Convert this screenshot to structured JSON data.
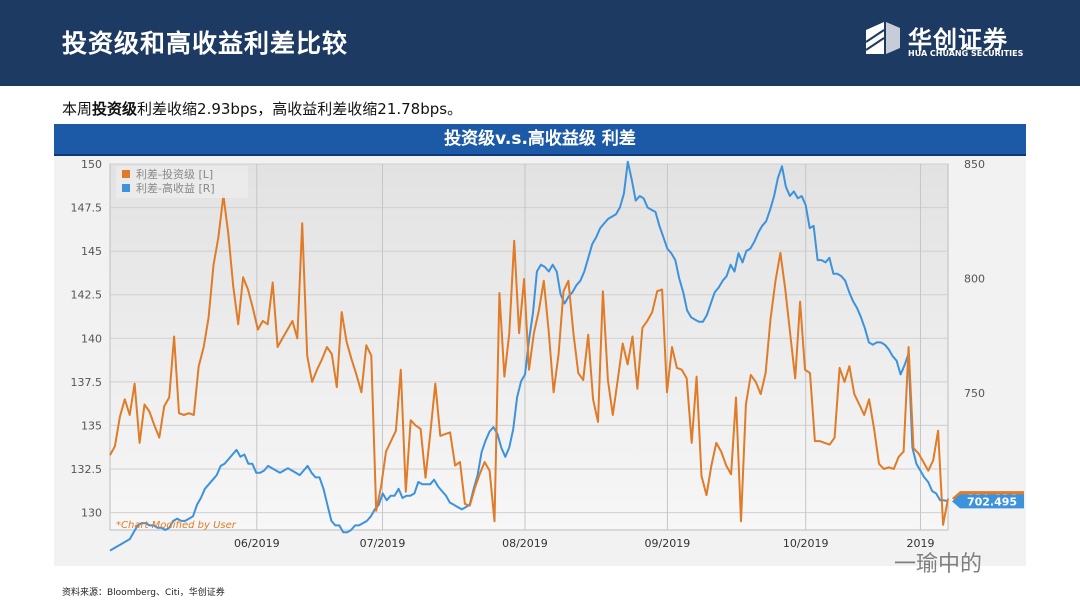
{
  "header": {
    "title": "投资级和高收益利差比较"
  },
  "logo": {
    "cn": "华创证券",
    "en": "HUA CHUANG SECURITIES"
  },
  "summary": {
    "pre": "本周",
    "bold": "投资级",
    "rest": "利差收缩2.93bps，高收益利差收缩21.78bps。"
  },
  "chart_banner": "投资级v.s.高收益级 利差",
  "footer": {
    "source": "资料来源：Bloomberg、Citi，华创证券"
  },
  "watermark": "一瑜中的",
  "colors": {
    "ig": "#e07b28",
    "hy": "#3d92dc",
    "banner": "#1c5aa8",
    "header": "#1d3a63"
  },
  "chart_data": {
    "type": "line",
    "annotation": "*Chart Modified by User",
    "x_labels": [
      "06/2019",
      "07/2019",
      "08/2019",
      "09/2019",
      "10/2019",
      "2019"
    ],
    "left_axis": {
      "ticks": [
        "150",
        "147.5",
        "145",
        "142.5",
        "140",
        "137.5",
        "135",
        "132.5",
        "130"
      ],
      "ylim": [
        129,
        150
      ]
    },
    "right_axis": {
      "ticks": [
        "850",
        "800",
        "750"
      ],
      "ylim": [
        690,
        850
      ]
    },
    "series": [
      {
        "name": "利差-投资级 [L]",
        "axis": "left",
        "color": "#e07b28",
        "last_value": "130.826",
        "values": [
          133.3,
          133.8,
          135.5,
          136.5,
          135.6,
          137.4,
          134,
          136.2,
          135.8,
          135,
          134.3,
          136.1,
          136.6,
          140.1,
          135.7,
          135.6,
          135.7,
          135.6,
          138.4,
          139.5,
          141.2,
          144.2,
          145.8,
          148.2,
          146,
          143,
          140.8,
          143.5,
          142.8,
          141.7,
          140.5,
          141,
          140.8,
          143.2,
          139.5,
          140,
          140.5,
          141,
          140,
          146.6,
          139,
          137.5,
          138.2,
          138.8,
          139.5,
          139.1,
          137.2,
          141.5,
          139.8,
          138.8,
          137.9,
          136.9,
          139.6,
          139,
          130.1,
          131.5,
          133.5,
          134.1,
          134.7,
          138.2,
          131.2,
          135.3,
          135,
          134.8,
          132,
          134.6,
          137.4,
          134.4,
          134.5,
          134.6,
          132.7,
          132.9,
          130.5,
          130.4,
          131.4,
          132.2,
          132.9,
          132.4,
          129.5,
          142.6,
          137.8,
          140.3,
          145.6,
          140.3,
          143.4,
          138.2,
          140.3,
          141.6,
          143.3,
          140.4,
          136.9,
          139.1,
          142.7,
          143.3,
          140.3,
          138,
          137.6,
          140.2,
          136.5,
          135.2,
          142.7,
          137.6,
          135.6,
          137.6,
          139.7,
          138.5,
          140.1,
          137.1,
          140.6,
          141,
          141.5,
          142.7,
          142.8,
          136.9,
          139.5,
          138.3,
          138.2,
          137.7,
          134,
          137.8,
          132.1,
          131,
          132.7,
          134,
          133.5,
          132.7,
          132.2,
          136.6,
          129.5,
          136.2,
          137.9,
          137.5,
          136.8,
          138,
          141.1,
          143.3,
          144.9,
          142.8,
          140.2,
          137.7,
          142.1,
          138.2,
          138,
          134.1,
          134.1,
          134,
          133.9,
          134.3,
          138.3,
          137.5,
          138.4,
          136.8,
          136.2,
          135.6,
          136.5,
          134.8,
          132.8,
          132.5,
          132.6,
          132.5,
          133.2,
          133.5,
          139.5,
          133.7,
          133.4,
          132.9,
          132.4,
          133,
          134.7,
          129.3,
          130.8
        ]
      },
      {
        "name": "利差-高收益 [R]",
        "axis": "right",
        "color": "#3d92dc",
        "last_value": "702.495",
        "values": [
          681,
          682,
          683,
          684,
          685,
          686,
          689,
          692,
          693,
          693,
          692,
          692,
          691,
          691,
          690,
          691,
          694,
          695,
          694,
          694,
          695,
          696,
          701,
          704,
          708,
          710,
          712,
          714,
          718,
          719,
          721,
          723,
          725,
          722,
          723,
          719,
          719,
          715,
          715,
          716,
          718,
          717,
          716,
          715,
          716,
          717,
          716,
          715,
          714,
          716,
          718,
          715,
          713,
          713,
          708,
          701,
          694,
          692,
          692,
          689,
          689,
          690,
          692,
          692,
          693,
          694,
          696,
          699,
          701,
          706,
          703,
          705,
          705,
          708,
          704,
          705,
          705,
          706,
          711,
          710,
          710,
          710,
          712,
          709,
          707,
          705,
          702,
          701,
          700,
          699,
          700,
          701,
          708,
          714,
          724,
          729,
          733,
          735,
          732,
          726,
          722,
          726,
          734,
          748,
          755,
          758,
          773,
          785,
          803,
          806,
          805,
          803,
          806,
          803,
          793,
          789,
          792,
          794,
          797,
          799,
          803,
          809,
          815,
          818,
          822,
          824,
          826,
          827,
          828,
          831,
          837,
          851,
          843,
          834,
          836,
          835,
          831,
          830,
          829,
          823,
          818,
          813,
          811,
          808,
          800,
          794,
          786,
          783,
          782,
          781,
          781,
          784,
          789,
          794,
          796,
          799,
          801,
          806,
          803,
          811,
          807,
          812,
          813,
          816,
          820,
          823,
          825,
          830,
          836,
          844,
          849,
          840,
          836,
          838,
          835,
          836,
          832,
          822,
          823,
          808,
          808,
          807,
          809,
          802,
          802,
          801,
          799,
          794,
          790,
          787,
          783,
          778,
          772,
          771,
          772,
          772,
          771,
          769,
          766,
          764,
          758,
          762,
          767,
          726,
          719,
          716,
          713,
          711,
          707,
          706,
          703,
          703,
          702.495
        ]
      }
    ]
  }
}
